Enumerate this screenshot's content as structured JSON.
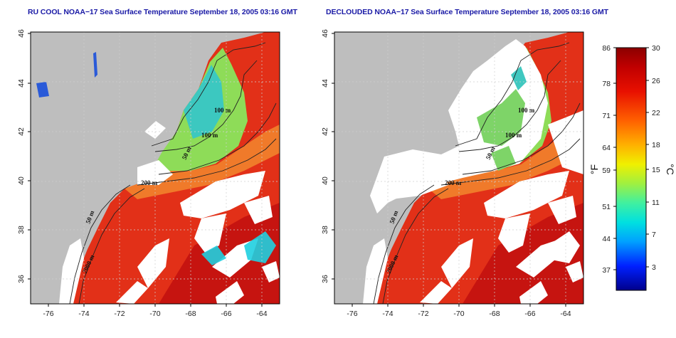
{
  "titles": {
    "left": "RU COOL NOAA−17 Sea Surface Temperature September 18, 2005 03:16 GMT",
    "right": "DECLOUDED NOAA−17 Sea Surface Temperature September 18, 2005 03:16 GMT"
  },
  "map": {
    "lon_range": [
      -77,
      -63
    ],
    "lat_range": [
      35,
      46
    ],
    "x_ticks": [
      "-76",
      "-74",
      "-72",
      "-70",
      "-68",
      "-66",
      "-64"
    ],
    "y_ticks": [
      "46",
      "44",
      "42",
      "40",
      "38",
      "36"
    ],
    "land_color": "#bebebe",
    "cloud_color": "#ffffff",
    "contour_labels_left": [
      "100 m",
      "100 m",
      "50 m",
      "200 m",
      "50 m",
      "2000 m"
    ],
    "contour_labels_right": [
      "100 m",
      "100 m",
      "50 m",
      "200 m",
      "50 m",
      "2000 m"
    ]
  },
  "colorbar": {
    "fahrenheit_ticks": [
      "86",
      "78",
      "71",
      "64",
      "59",
      "51",
      "44",
      "37"
    ],
    "celsius_ticks": [
      "30",
      "26",
      "22",
      "18",
      "15",
      "11",
      "7",
      "3"
    ],
    "fahrenheit_label": "°F",
    "celsius_label": "°C",
    "range_c": [
      0,
      30
    ],
    "colors": [
      "#00008c",
      "#0020ff",
      "#00a0ff",
      "#00e0e0",
      "#40f0a0",
      "#a0f040",
      "#f0f000",
      "#ffb000",
      "#ff6000",
      "#f02000",
      "#c00000",
      "#8c0000"
    ]
  }
}
